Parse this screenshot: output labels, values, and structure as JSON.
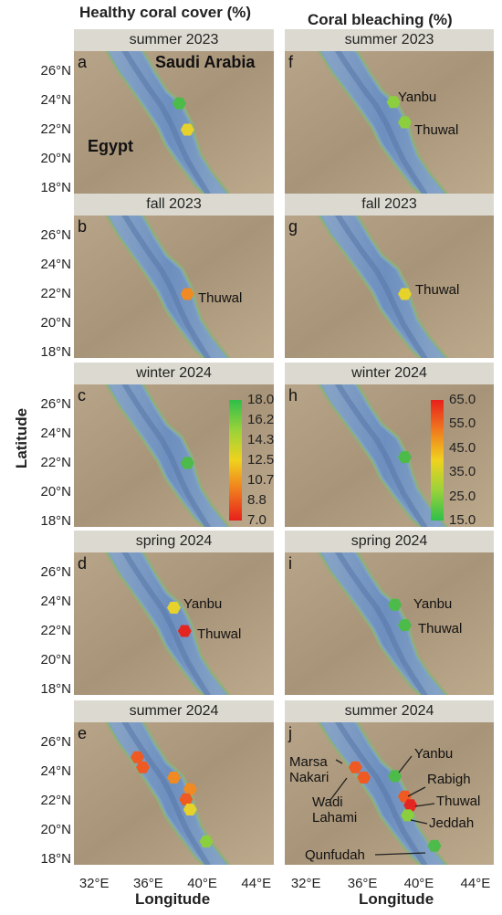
{
  "columns": [
    {
      "title": "Healthy coral cover (%)"
    },
    {
      "title": "Coral bleaching (%)"
    }
  ],
  "seasons": [
    "summer 2023",
    "fall 2023",
    "winter 2024",
    "spring 2024",
    "summer 2024"
  ],
  "panel_letters": {
    "left": [
      "a",
      "b",
      "c",
      "d",
      "e"
    ],
    "right": [
      "f",
      "g",
      "h",
      "i",
      "j"
    ]
  },
  "country_labels": {
    "saudi": "Saudi Arabia",
    "egypt": "Egypt"
  },
  "axes": {
    "latitude_title": "Latitude",
    "longitude_title": "Longitude",
    "lat_ticks": [
      "26°N",
      "24°N",
      "22°N",
      "20°N",
      "18°N"
    ],
    "lon_ticks": [
      "32°E",
      "36°E",
      "40°E",
      "44°E"
    ]
  },
  "colorbars": {
    "healthy": {
      "labels": [
        "18.0",
        "16.2",
        "14.3",
        "12.5",
        "10.7",
        "8.8",
        "7.0"
      ],
      "colors": [
        "#2fbf4a",
        "#9ad23a",
        "#f0d21e",
        "#f07a1e",
        "#e8201c"
      ]
    },
    "bleaching": {
      "labels": [
        "65.0",
        "55.0",
        "45.0",
        "35.0",
        "25.0",
        "15.0"
      ],
      "colors": [
        "#e8201c",
        "#f07a1e",
        "#f0d21e",
        "#9ad23a",
        "#2fbf4a"
      ]
    }
  },
  "place_labels": {
    "yanbu": "Yanbu",
    "thuwal": "Thuwal",
    "marsa": "Marsa",
    "nakari": "Nakari",
    "wadi": "Wadi",
    "lahami": "Lahami",
    "rabigh": "Rabigh",
    "jeddah": "Jeddah",
    "qunfudah": "Qunfudah"
  },
  "map_data": {
    "colors": {
      "green": "#4cbb4a",
      "lightgreen": "#8ccf3e",
      "yellow": "#e6d22a",
      "orange": "#f08a22",
      "redorange": "#ee5a22",
      "red": "#e52620"
    },
    "sites": {
      "a": [
        {
          "lon": 38.3,
          "lat": 23.8,
          "color": "green"
        },
        {
          "lon": 38.9,
          "lat": 22.0,
          "color": "yellow"
        }
      ],
      "b": [
        {
          "lon": 38.9,
          "lat": 22.0,
          "color": "orange"
        }
      ],
      "c": [
        {
          "lon": 38.9,
          "lat": 22.0,
          "color": "green"
        }
      ],
      "d": [
        {
          "lon": 37.9,
          "lat": 23.6,
          "color": "yellow"
        },
        {
          "lon": 38.7,
          "lat": 22.0,
          "color": "red"
        }
      ],
      "e": [
        {
          "lon": 35.2,
          "lat": 25.0,
          "color": "redorange"
        },
        {
          "lon": 35.6,
          "lat": 24.3,
          "color": "redorange"
        },
        {
          "lon": 37.9,
          "lat": 23.6,
          "color": "orange"
        },
        {
          "lon": 39.1,
          "lat": 22.8,
          "color": "orange"
        },
        {
          "lon": 38.8,
          "lat": 22.1,
          "color": "redorange"
        },
        {
          "lon": 39.1,
          "lat": 21.4,
          "color": "yellow"
        },
        {
          "lon": 40.3,
          "lat": 19.2,
          "color": "lightgreen"
        }
      ],
      "f": [
        {
          "lon": 38.2,
          "lat": 23.9,
          "color": "lightgreen"
        },
        {
          "lon": 39.0,
          "lat": 22.5,
          "color": "lightgreen"
        }
      ],
      "g": [
        {
          "lon": 39.0,
          "lat": 22.0,
          "color": "yellow"
        }
      ],
      "h": [
        {
          "lon": 39.0,
          "lat": 22.4,
          "color": "green"
        }
      ],
      "i": [
        {
          "lon": 38.3,
          "lat": 23.8,
          "color": "green"
        },
        {
          "lon": 39.0,
          "lat": 22.4,
          "color": "green"
        }
      ],
      "j": [
        {
          "lon": 35.5,
          "lat": 24.3,
          "color": "redorange"
        },
        {
          "lon": 36.1,
          "lat": 23.6,
          "color": "redorange"
        },
        {
          "lon": 38.3,
          "lat": 23.7,
          "color": "green"
        },
        {
          "lon": 39.0,
          "lat": 22.3,
          "color": "redorange"
        },
        {
          "lon": 39.4,
          "lat": 21.7,
          "color": "red"
        },
        {
          "lon": 39.2,
          "lat": 21.0,
          "color": "lightgreen"
        },
        {
          "lon": 41.1,
          "lat": 18.9,
          "color": "green"
        }
      ]
    }
  }
}
